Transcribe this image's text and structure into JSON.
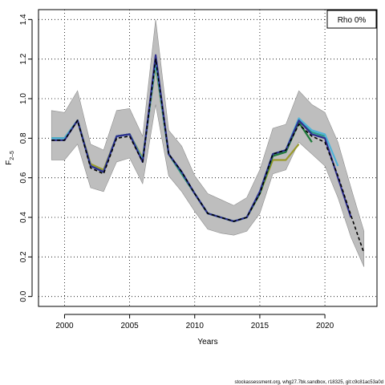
{
  "chart_data": {
    "type": "line",
    "title": "",
    "xlabel": "Years",
    "ylabel": "F",
    "ylabel_sub": "2–5",
    "xlim": [
      1998,
      2024
    ],
    "ylim": [
      -0.05,
      1.45
    ],
    "x_ticks": [
      2000,
      2005,
      2010,
      2015,
      2020
    ],
    "y_ticks": [
      0.0,
      0.2,
      0.4,
      0.6,
      0.8,
      1.0,
      1.2,
      1.4
    ],
    "y_tick_labels": [
      "0.0",
      "0.2",
      "0.4",
      "0.6",
      "0.8",
      "1.0",
      "1.2",
      "1.4"
    ],
    "grid": true,
    "legend_position": "top-right",
    "legend_text": "Rho 0%",
    "confidence_band": {
      "color": "#bebebe",
      "x": [
        1999,
        2000,
        2001,
        2002,
        2003,
        2004,
        2005,
        2006,
        2007,
        2008,
        2009,
        2010,
        2011,
        2012,
        2013,
        2014,
        2015,
        2016,
        2017,
        2018,
        2019,
        2020,
        2021,
        2022,
        2023
      ],
      "lower": [
        0.69,
        0.69,
        0.77,
        0.55,
        0.53,
        0.68,
        0.7,
        0.57,
        0.97,
        0.61,
        0.53,
        0.43,
        0.34,
        0.32,
        0.31,
        0.33,
        0.42,
        0.62,
        0.64,
        0.78,
        0.72,
        0.66,
        0.5,
        0.3,
        0.15
      ],
      "upper": [
        0.94,
        0.93,
        1.04,
        0.77,
        0.74,
        0.94,
        0.95,
        0.81,
        1.4,
        0.84,
        0.76,
        0.61,
        0.52,
        0.49,
        0.46,
        0.5,
        0.64,
        0.85,
        0.87,
        1.04,
        0.97,
        0.93,
        0.78,
        0.55,
        0.33
      ]
    },
    "series": [
      {
        "color": "#000000",
        "dashed": true,
        "x": [
          1999,
          2000,
          2001,
          2002,
          2003,
          2004,
          2005,
          2006,
          2007,
          2008,
          2009,
          2010,
          2011,
          2012,
          2013,
          2014,
          2015,
          2016,
          2017,
          2018,
          2019,
          2020,
          2021,
          2022,
          2023
        ],
        "values": [
          0.79,
          0.79,
          0.89,
          0.65,
          0.62,
          0.8,
          0.81,
          0.68,
          1.2,
          0.72,
          0.63,
          0.52,
          0.42,
          0.4,
          0.38,
          0.4,
          0.52,
          0.72,
          0.74,
          0.87,
          0.81,
          0.78,
          0.61,
          0.41,
          0.22
        ]
      },
      {
        "color": "#2e2e8f",
        "x": [
          1999,
          2000,
          2001,
          2002,
          2003,
          2004,
          2005,
          2006,
          2007,
          2008,
          2009,
          2010,
          2011,
          2012,
          2013,
          2014,
          2015,
          2016,
          2017,
          2018,
          2019,
          2020,
          2021,
          2022
        ],
        "values": [
          0.79,
          0.79,
          0.89,
          0.66,
          0.63,
          0.81,
          0.82,
          0.68,
          1.22,
          0.72,
          0.63,
          0.52,
          0.42,
          0.4,
          0.38,
          0.4,
          0.53,
          0.72,
          0.74,
          0.89,
          0.82,
          0.8,
          0.6,
          0.4
        ]
      },
      {
        "color": "#4fb3d9",
        "x": [
          1999,
          2000,
          2001,
          2002,
          2003,
          2004,
          2005,
          2006,
          2007,
          2008,
          2009,
          2010,
          2011,
          2012,
          2013,
          2014,
          2015,
          2016,
          2017,
          2018,
          2019,
          2020,
          2021
        ],
        "values": [
          0.8,
          0.8,
          0.89,
          0.66,
          0.63,
          0.81,
          0.82,
          0.69,
          1.19,
          0.72,
          0.63,
          0.52,
          0.42,
          0.4,
          0.38,
          0.4,
          0.53,
          0.72,
          0.74,
          0.9,
          0.84,
          0.82,
          0.66
        ]
      },
      {
        "color": "#2a9b8a",
        "x": [
          1999,
          2000,
          2001,
          2002,
          2003,
          2004,
          2005,
          2006,
          2007,
          2008,
          2009,
          2010,
          2011,
          2012,
          2013,
          2014,
          2015,
          2016,
          2017,
          2018,
          2019,
          2020
        ],
        "values": [
          0.8,
          0.8,
          0.89,
          0.66,
          0.63,
          0.81,
          0.82,
          0.69,
          1.19,
          0.72,
          0.62,
          0.52,
          0.42,
          0.4,
          0.38,
          0.4,
          0.53,
          0.72,
          0.74,
          0.9,
          0.83,
          0.81
        ]
      },
      {
        "color": "#1f7a3a",
        "x": [
          1999,
          2000,
          2001,
          2002,
          2003,
          2004,
          2005,
          2006,
          2007,
          2008,
          2009,
          2010,
          2011,
          2012,
          2013,
          2014,
          2015,
          2016,
          2017,
          2018,
          2019
        ],
        "values": [
          0.8,
          0.8,
          0.89,
          0.66,
          0.63,
          0.81,
          0.82,
          0.69,
          1.18,
          0.72,
          0.62,
          0.52,
          0.42,
          0.4,
          0.38,
          0.4,
          0.52,
          0.71,
          0.73,
          0.88,
          0.78
        ]
      },
      {
        "color": "#9a9a2a",
        "x": [
          1999,
          2000,
          2001,
          2002,
          2003,
          2004,
          2005,
          2006,
          2007,
          2008,
          2009,
          2010,
          2011,
          2012,
          2013,
          2014,
          2015,
          2016,
          2017,
          2018
        ],
        "values": [
          0.8,
          0.8,
          0.89,
          0.67,
          0.64,
          0.81,
          0.82,
          0.7,
          1.17,
          0.72,
          0.62,
          0.52,
          0.42,
          0.4,
          0.38,
          0.4,
          0.52,
          0.69,
          0.69,
          0.77
        ]
      }
    ],
    "footer": "stockassessment.org, whg27.7bk.sandbox, r18325, git:c9c81ac53a0d"
  }
}
